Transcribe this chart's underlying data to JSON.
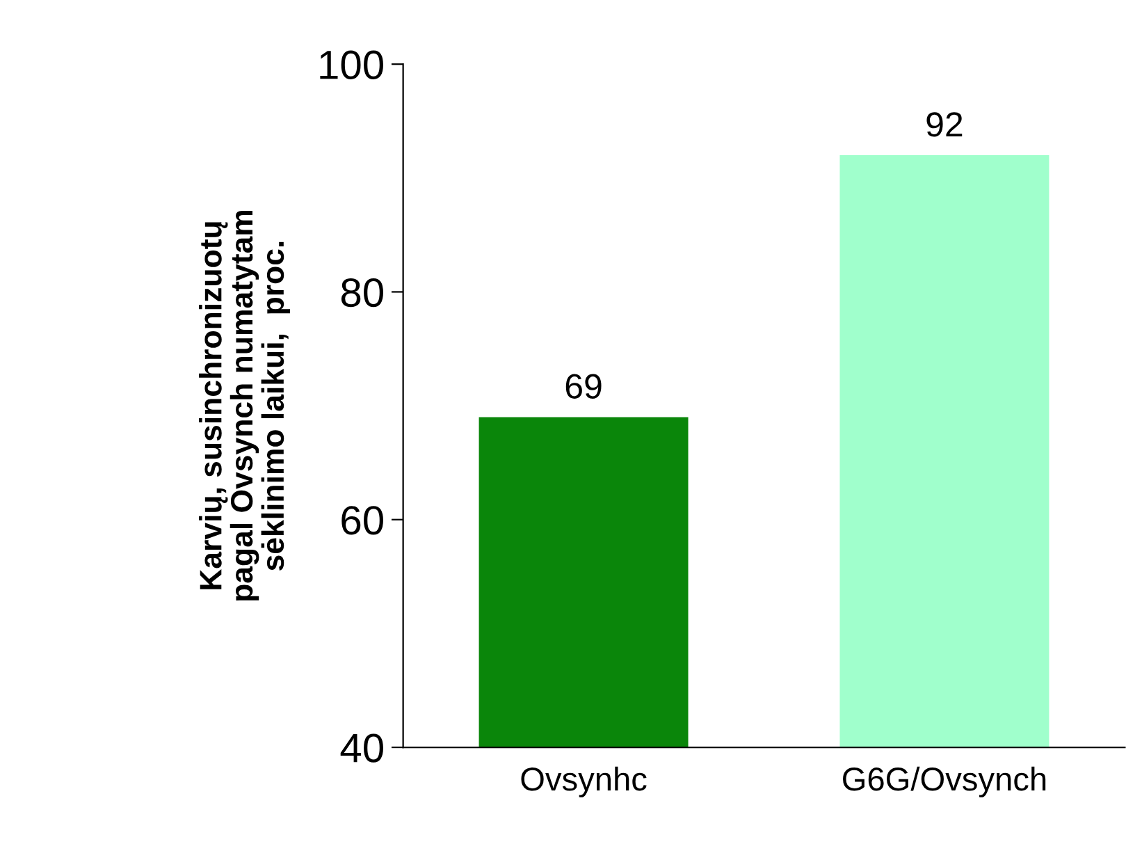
{
  "chart_data": {
    "type": "bar",
    "categories": [
      "Ovsynhc",
      "G6G/Ovsynch"
    ],
    "values": [
      69,
      92
    ],
    "colors": [
      "#0a860a",
      "#a0ffcc"
    ],
    "ylabel": "Karvių, susinchronizuotų\npagal Ovsynch numatytam\nsėklinimo laikui,  proc.",
    "ylim": [
      40,
      100
    ],
    "yticks": [
      40,
      60,
      80,
      100
    ],
    "data_labels": true,
    "grid": false,
    "legend": false
  }
}
